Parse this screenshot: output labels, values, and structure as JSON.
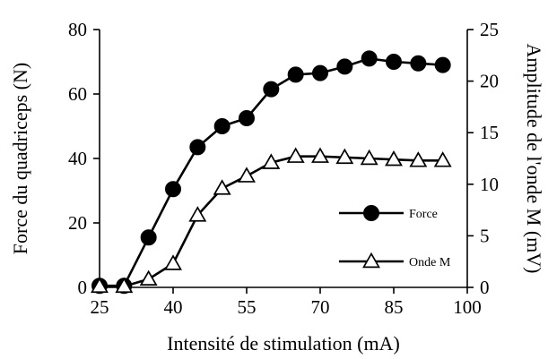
{
  "chart_data": {
    "type": "line",
    "title": "",
    "xlabel": "Intensité de stimulation (mA)",
    "ylabel_left": "Force du quadriceps (N)",
    "ylabel_right": "Amplitude de l'onde M (mV)",
    "xlim": [
      25,
      100
    ],
    "ylim_left": [
      0,
      80
    ],
    "ylim_right": [
      0,
      25
    ],
    "x_ticks": [
      25,
      40,
      55,
      70,
      85,
      100
    ],
    "y_left_ticks": [
      0,
      20,
      40,
      60,
      80
    ],
    "y_right_ticks": [
      0,
      5,
      10,
      15,
      20,
      25
    ],
    "grid": false,
    "legend_position": "right-lower",
    "series": [
      {
        "name": "Force",
        "axis": "left",
        "marker": "filled-circle",
        "color": "#000000",
        "x": [
          25,
          30,
          35,
          40,
          45,
          50,
          55,
          60,
          65,
          70,
          75,
          80,
          85,
          90,
          95
        ],
        "values": [
          0.5,
          0.5,
          15.5,
          30.5,
          43.5,
          50,
          52.5,
          61.5,
          66,
          66.5,
          68.5,
          71,
          70,
          69.5,
          69
        ]
      },
      {
        "name": "Onde M",
        "axis": "right",
        "marker": "open-triangle",
        "color": "#000000",
        "x": [
          25,
          30,
          35,
          40,
          45,
          50,
          55,
          60,
          65,
          70,
          75,
          80,
          85,
          90,
          95
        ],
        "values": [
          0.1,
          0.1,
          0.8,
          2.3,
          7,
          9.6,
          10.8,
          12.1,
          12.7,
          12.7,
          12.6,
          12.5,
          12.4,
          12.3,
          12.3
        ]
      }
    ]
  }
}
